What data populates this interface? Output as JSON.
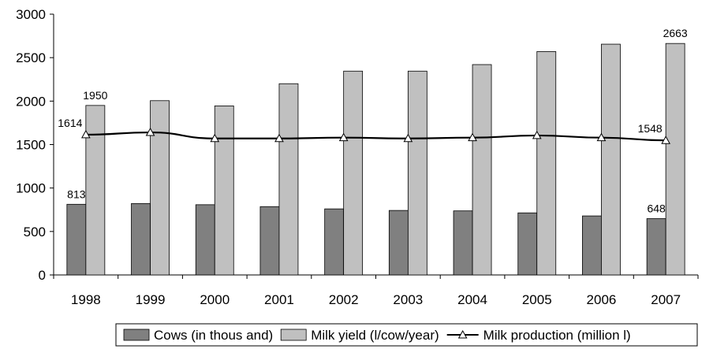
{
  "chart_data": {
    "type": "bar",
    "title": "",
    "xlabel": "",
    "ylabel": "",
    "ylim": [
      0,
      3000
    ],
    "yticks": [
      0,
      500,
      1000,
      1500,
      2000,
      2500,
      3000
    ],
    "grid": false,
    "legend_position": "bottom",
    "categories": [
      "1998",
      "1999",
      "2000",
      "2001",
      "2002",
      "2003",
      "2004",
      "2005",
      "2006",
      "2007"
    ],
    "series": [
      {
        "name": "Cows (in thous and)",
        "type": "bar",
        "color": "#808080",
        "values": [
          813,
          822,
          808,
          786,
          760,
          742,
          737,
          714,
          679,
          648
        ]
      },
      {
        "name": "Milk yield (l/cow/year)",
        "type": "bar",
        "color": "#c0c0c0",
        "values": [
          1950,
          2005,
          1945,
          2200,
          2345,
          2345,
          2420,
          2570,
          2655,
          2663
        ]
      },
      {
        "name": "Milk production (million l)",
        "type": "line",
        "color": "#000000",
        "marker": "triangle",
        "values": [
          1614,
          1640,
          1570,
          1570,
          1580,
          1570,
          1580,
          1605,
          1580,
          1548
        ]
      }
    ],
    "data_labels": [
      {
        "series": 0,
        "index": 0,
        "text": "813"
      },
      {
        "series": 0,
        "index": 9,
        "text": "648"
      },
      {
        "series": 1,
        "index": 0,
        "text": "1950"
      },
      {
        "series": 1,
        "index": 9,
        "text": "2663"
      },
      {
        "series": 2,
        "index": 0,
        "text": "1614"
      },
      {
        "series": 2,
        "index": 9,
        "text": "1548"
      }
    ]
  }
}
